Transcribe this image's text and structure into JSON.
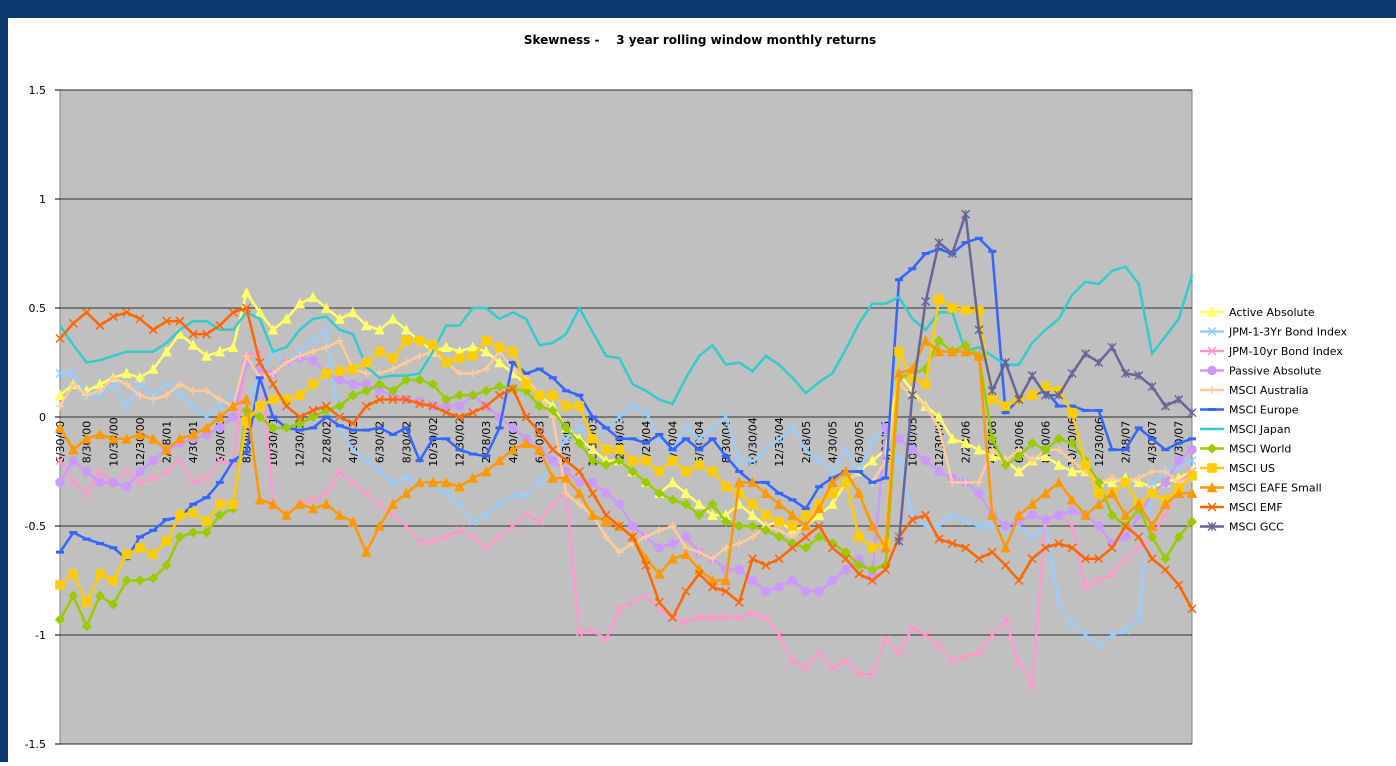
{
  "chart_data": {
    "type": "line",
    "title": "Skewness -    3 year rolling window monthly returns",
    "categories": [
      "6/30/00",
      null,
      "8/30/00",
      null,
      "10/30/00",
      null,
      "12/30/00",
      null,
      "2/28/01",
      null,
      "4/30/01",
      null,
      "6/30/01",
      null,
      "8/30/01",
      null,
      "10/30/01",
      null,
      "12/30/01",
      null,
      "2/28/02",
      null,
      "4/30/02",
      null,
      "6/30/02",
      null,
      "8/30/02",
      null,
      "10/30/02",
      null,
      "12/30/02",
      null,
      "2/28/03",
      null,
      "4/30/03",
      null,
      "6/30/03",
      null,
      "8/30/03",
      null,
      "10/30/03",
      null,
      "12/30/03",
      null,
      "2/29/04",
      null,
      "4/30/04",
      null,
      "6/30/04",
      null,
      "8/30/04",
      null,
      "10/30/04",
      null,
      "12/30/04",
      null,
      "2/28/05",
      null,
      "4/30/05",
      null,
      "6/30/05",
      null,
      "8/30/05",
      null,
      "10/30/05",
      null,
      "12/30/05",
      null,
      "2/28/06",
      null,
      "4/30/06",
      null,
      "6/30/06",
      null,
      "8/30/06",
      null,
      "10/30/06",
      null,
      "12/30/06",
      null,
      "2/28/07",
      null,
      "4/30/07",
      null,
      "6/30/07",
      null
    ],
    "ylim": [
      -1.5,
      1.5
    ],
    "yticks": [
      -1.5,
      -1,
      -0.5,
      0,
      0.5,
      1,
      1.5
    ],
    "grid": true,
    "legend": "right",
    "series": [
      {
        "name": "Active Absolute",
        "color": "#ffff66",
        "marker": "triangle",
        "values": [
          0.1,
          0.15,
          0.12,
          0.15,
          0.18,
          0.2,
          0.18,
          0.22,
          0.3,
          0.38,
          0.33,
          0.28,
          0.3,
          0.32,
          0.57,
          0.48,
          0.4,
          0.45,
          0.52,
          0.55,
          0.5,
          0.45,
          0.48,
          0.42,
          0.4,
          0.45,
          0.4,
          0.35,
          0.3,
          0.32,
          0.3,
          0.32,
          0.3,
          0.25,
          0.2,
          0.15,
          0.1,
          0.05,
          -0.05,
          -0.1,
          -0.15,
          -0.2,
          -0.2,
          -0.25,
          -0.3,
          -0.35,
          -0.3,
          -0.35,
          -0.4,
          -0.45,
          -0.45,
          -0.4,
          -0.45,
          -0.5,
          -0.48,
          -0.52,
          -0.5,
          -0.45,
          -0.4,
          -0.3,
          -0.25,
          -0.2,
          -0.15,
          0.2,
          0.12,
          0.05,
          0.0,
          -0.1,
          -0.12,
          -0.15,
          -0.18,
          -0.2,
          -0.25,
          -0.2,
          -0.18,
          -0.22,
          -0.25,
          -0.25,
          -0.3,
          -0.3,
          -0.28,
          -0.3,
          -0.32,
          -0.3,
          -0.28,
          -0.25
        ]
      },
      {
        "name": "JPM-1-3Yr Bond Index",
        "color": "#99ccff",
        "marker": "x",
        "values": [
          0.2,
          0.2,
          0.1,
          0.1,
          0.15,
          0.05,
          0.15,
          0.1,
          0.15,
          0.1,
          0.05,
          0.0,
          0.05,
          0.1,
          0.05,
          0.2,
          0.3,
          0.25,
          0.3,
          0.35,
          0.4,
          -0.05,
          -0.15,
          -0.2,
          -0.25,
          -0.3,
          -0.28,
          -0.3,
          -0.32,
          -0.35,
          -0.4,
          -0.48,
          -0.45,
          -0.4,
          -0.36,
          -0.36,
          -0.3,
          -0.2,
          -0.1,
          -0.05,
          -0.1,
          -0.05,
          0.0,
          0.05,
          0.02,
          -0.1,
          -0.15,
          -0.05,
          -0.1,
          -0.05,
          0.0,
          -0.2,
          -0.2,
          -0.15,
          -0.1,
          -0.05,
          -0.15,
          -0.2,
          -0.25,
          -0.15,
          -0.25,
          -0.1,
          -0.05,
          -0.2,
          -0.45,
          -0.5,
          -0.5,
          -0.45,
          -0.48,
          -0.5,
          -0.5,
          -0.52,
          -0.5,
          -0.55,
          -0.5,
          -0.85,
          -0.95,
          -1.0,
          -1.05,
          -1.0,
          -0.98,
          -0.93,
          -0.3,
          -0.25,
          -0.22,
          -0.2
        ]
      },
      {
        "name": "JPM-10yr Bond Index",
        "color": "#ff99cc",
        "marker": "x",
        "values": [
          -0.2,
          -0.3,
          -0.35,
          -0.25,
          -0.3,
          -0.25,
          -0.3,
          -0.28,
          -0.25,
          -0.2,
          -0.3,
          -0.28,
          -0.2,
          -0.22,
          0.28,
          0.3,
          -0.4,
          -0.45,
          -0.4,
          -0.38,
          -0.35,
          -0.25,
          -0.3,
          -0.35,
          -0.4,
          -0.45,
          -0.5,
          -0.57,
          -0.57,
          -0.55,
          -0.52,
          -0.55,
          -0.6,
          -0.55,
          -0.5,
          -0.45,
          -0.48,
          -0.4,
          -0.35,
          -0.99,
          -0.98,
          -1.02,
          -0.88,
          -0.85,
          -0.82,
          -0.88,
          -0.92,
          -0.94,
          -0.92,
          -0.92,
          -0.92,
          -0.92,
          -0.9,
          -0.92,
          -1.0,
          -1.12,
          -1.15,
          -1.08,
          -1.15,
          -1.12,
          -1.18,
          -1.18,
          -1.02,
          -1.08,
          -0.97,
          -1.0,
          -1.05,
          -1.12,
          -1.1,
          -1.08,
          -1.0,
          -0.93,
          -1.13,
          -1.23,
          -0.48,
          -0.45,
          -0.5,
          -0.78,
          -0.75,
          -0.72,
          -0.65,
          -0.6,
          -0.55,
          -0.45,
          -0.3,
          -0.25
        ]
      },
      {
        "name": "Passive Absolute",
        "color": "#cc99ff",
        "marker": "circle",
        "values": [
          -0.3,
          -0.2,
          -0.25,
          -0.3,
          -0.3,
          -0.32,
          -0.25,
          -0.2,
          -0.15,
          -0.12,
          -0.1,
          -0.08,
          -0.05,
          0.0,
          0.25,
          0.22,
          0.2,
          0.25,
          0.27,
          0.26,
          0.2,
          0.17,
          0.15,
          0.15,
          0.12,
          0.1,
          0.08,
          0.07,
          0.05,
          0.05,
          0.05,
          0.1,
          0.05,
          0.0,
          -0.05,
          -0.1,
          -0.15,
          -0.2,
          -0.25,
          -0.3,
          -0.3,
          -0.35,
          -0.4,
          -0.5,
          -0.55,
          -0.6,
          -0.58,
          -0.55,
          -0.62,
          -0.65,
          -0.7,
          -0.7,
          -0.75,
          -0.8,
          -0.78,
          -0.75,
          -0.8,
          -0.8,
          -0.75,
          -0.7,
          -0.65,
          -0.72,
          -0.05,
          -0.1,
          -0.15,
          -0.2,
          -0.25,
          -0.28,
          -0.3,
          -0.35,
          -0.45,
          -0.5,
          -0.48,
          -0.45,
          -0.47,
          -0.45,
          -0.43,
          -0.45,
          -0.5,
          -0.58,
          -0.55,
          -0.45,
          -0.35,
          -0.3,
          -0.2,
          -0.15
        ]
      },
      {
        "name": "MSCI Australia",
        "color": "#ffcc99",
        "marker": "plus",
        "values": [
          0.05,
          0.15,
          0.1,
          0.12,
          0.18,
          0.15,
          0.1,
          0.08,
          0.1,
          0.15,
          0.12,
          0.12,
          0.08,
          0.05,
          0.28,
          0.18,
          0.2,
          0.25,
          0.28,
          0.3,
          0.32,
          0.35,
          0.22,
          0.2,
          0.2,
          0.22,
          0.25,
          0.28,
          0.3,
          0.25,
          0.2,
          0.2,
          0.22,
          0.3,
          0.22,
          0.18,
          0.1,
          0.0,
          -0.35,
          -0.4,
          -0.45,
          -0.55,
          -0.62,
          -0.58,
          -0.55,
          -0.52,
          -0.5,
          -0.6,
          -0.62,
          -0.65,
          -0.6,
          -0.58,
          -0.55,
          -0.5,
          -0.52,
          -0.55,
          -0.5,
          -0.4,
          -0.35,
          -0.3,
          -0.25,
          -0.3,
          -0.2,
          0.15,
          0.1,
          0.05,
          -0.05,
          -0.3,
          -0.3,
          -0.3,
          -0.15,
          -0.2,
          -0.15,
          -0.2,
          -0.15,
          -0.15,
          -0.2,
          -0.25,
          -0.3,
          -0.28,
          -0.3,
          -0.28,
          -0.25,
          -0.25,
          -0.3,
          -0.28
        ]
      },
      {
        "name": "MSCI Europe",
        "color": "#3366ff",
        "marker": "dash",
        "values": [
          -0.62,
          -0.53,
          -0.56,
          -0.58,
          -0.6,
          -0.65,
          -0.55,
          -0.52,
          -0.47,
          -0.46,
          -0.4,
          -0.37,
          -0.3,
          -0.2,
          -0.16,
          0.18,
          0.0,
          -0.05,
          -0.06,
          -0.05,
          0.0,
          -0.04,
          -0.06,
          -0.06,
          -0.05,
          -0.08,
          -0.05,
          -0.2,
          -0.1,
          -0.1,
          -0.15,
          -0.17,
          -0.18,
          -0.05,
          0.25,
          0.2,
          0.22,
          0.18,
          0.12,
          0.1,
          0.0,
          -0.05,
          -0.1,
          -0.1,
          -0.12,
          -0.08,
          -0.15,
          -0.1,
          -0.15,
          -0.1,
          -0.18,
          -0.25,
          -0.3,
          -0.3,
          -0.35,
          -0.38,
          -0.42,
          -0.32,
          -0.28,
          -0.25,
          -0.25,
          -0.3,
          -0.28,
          0.63,
          0.68,
          0.75,
          0.77,
          0.75,
          0.8,
          0.82,
          0.76,
          0.02,
          0.08,
          0.1,
          0.12,
          0.05,
          0.05,
          0.03,
          0.03,
          -0.15,
          -0.15,
          -0.05,
          -0.1,
          -0.15,
          -0.12,
          -0.1
        ]
      },
      {
        "name": "MSCI Japan",
        "color": "#33cccc",
        "marker": "none",
        "values": [
          0.42,
          0.33,
          0.25,
          0.26,
          0.28,
          0.3,
          0.3,
          0.3,
          0.34,
          0.4,
          0.44,
          0.44,
          0.4,
          0.4,
          0.48,
          0.45,
          0.3,
          0.32,
          0.4,
          0.45,
          0.46,
          0.4,
          0.38,
          0.23,
          0.18,
          0.19,
          0.19,
          0.2,
          0.3,
          0.42,
          0.42,
          0.5,
          0.5,
          0.45,
          0.48,
          0.45,
          0.33,
          0.34,
          0.38,
          0.5,
          0.39,
          0.28,
          0.27,
          0.15,
          0.12,
          0.08,
          0.06,
          0.18,
          0.28,
          0.33,
          0.24,
          0.25,
          0.21,
          0.28,
          0.24,
          0.18,
          0.11,
          0.16,
          0.2,
          0.31,
          0.43,
          0.52,
          0.52,
          0.55,
          0.45,
          0.4,
          0.48,
          0.48,
          0.3,
          0.32,
          0.28,
          0.24,
          0.24,
          0.34,
          0.4,
          0.45,
          0.56,
          0.62,
          0.61,
          0.67,
          0.69,
          0.61,
          0.29,
          0.37,
          0.45,
          0.65
        ]
      },
      {
        "name": "MSCI World",
        "color": "#99cc00",
        "marker": "diamond",
        "values": [
          -0.93,
          -0.82,
          -0.96,
          -0.82,
          -0.86,
          -0.75,
          -0.75,
          -0.74,
          -0.68,
          -0.55,
          -0.53,
          -0.53,
          -0.45,
          -0.42,
          0.03,
          0.0,
          -0.05,
          -0.05,
          -0.03,
          0.0,
          0.03,
          0.05,
          0.1,
          0.12,
          0.15,
          0.12,
          0.17,
          0.17,
          0.15,
          0.08,
          0.1,
          0.1,
          0.12,
          0.14,
          0.13,
          0.12,
          0.05,
          0.03,
          -0.05,
          -0.12,
          -0.2,
          -0.22,
          -0.2,
          -0.25,
          -0.3,
          -0.35,
          -0.38,
          -0.4,
          -0.45,
          -0.4,
          -0.48,
          -0.5,
          -0.5,
          -0.52,
          -0.55,
          -0.58,
          -0.6,
          -0.55,
          -0.58,
          -0.62,
          -0.68,
          -0.7,
          -0.68,
          0.18,
          0.2,
          0.22,
          0.35,
          0.3,
          0.33,
          0.28,
          -0.1,
          -0.22,
          -0.18,
          -0.12,
          -0.15,
          -0.1,
          -0.12,
          -0.2,
          -0.3,
          -0.45,
          -0.5,
          -0.42,
          -0.55,
          -0.65,
          -0.55,
          -0.48
        ]
      },
      {
        "name": "MSCI US",
        "color": "#ffcc00",
        "marker": "square",
        "values": [
          -0.77,
          -0.72,
          -0.85,
          -0.72,
          -0.75,
          -0.63,
          -0.6,
          -0.63,
          -0.57,
          -0.45,
          -0.44,
          -0.48,
          -0.4,
          -0.4,
          -0.02,
          0.05,
          0.08,
          0.08,
          0.1,
          0.15,
          0.2,
          0.21,
          0.22,
          0.25,
          0.3,
          0.27,
          0.35,
          0.35,
          0.33,
          0.25,
          0.27,
          0.28,
          0.35,
          0.32,
          0.3,
          0.15,
          0.1,
          0.1,
          0.05,
          0.05,
          -0.1,
          -0.15,
          -0.15,
          -0.2,
          -0.2,
          -0.25,
          -0.2,
          -0.25,
          -0.22,
          -0.25,
          -0.32,
          -0.35,
          -0.4,
          -0.45,
          -0.48,
          -0.5,
          -0.45,
          -0.4,
          -0.35,
          -0.3,
          -0.55,
          -0.6,
          -0.58,
          0.3,
          0.18,
          0.15,
          0.54,
          0.5,
          0.49,
          0.49,
          0.08,
          0.05,
          0.08,
          0.1,
          0.14,
          0.12,
          0.02,
          -0.22,
          -0.35,
          -0.35,
          -0.3,
          -0.4,
          -0.35,
          -0.38,
          -0.33,
          -0.27
        ]
      },
      {
        "name": "MSCI EAFE Small",
        "color": "#ff9900",
        "marker": "triangle",
        "values": [
          -0.05,
          -0.15,
          -0.1,
          -0.08,
          -0.1,
          -0.1,
          -0.08,
          -0.1,
          -0.15,
          -0.1,
          -0.08,
          -0.05,
          0.0,
          0.05,
          0.08,
          -0.38,
          -0.4,
          -0.45,
          -0.4,
          -0.42,
          -0.4,
          -0.45,
          -0.48,
          -0.62,
          -0.5,
          -0.4,
          -0.35,
          -0.3,
          -0.3,
          -0.3,
          -0.32,
          -0.28,
          -0.25,
          -0.2,
          -0.15,
          -0.12,
          -0.15,
          -0.28,
          -0.28,
          -0.35,
          -0.45,
          -0.48,
          -0.5,
          -0.55,
          -0.65,
          -0.72,
          -0.65,
          -0.63,
          -0.7,
          -0.75,
          -0.75,
          -0.3,
          -0.3,
          -0.35,
          -0.4,
          -0.45,
          -0.5,
          -0.42,
          -0.3,
          -0.25,
          -0.35,
          -0.5,
          -0.6,
          0.2,
          0.22,
          0.35,
          0.3,
          0.3,
          0.3,
          0.28,
          -0.45,
          -0.6,
          -0.45,
          -0.4,
          -0.35,
          -0.3,
          -0.38,
          -0.45,
          -0.4,
          -0.35,
          -0.45,
          -0.4,
          -0.5,
          -0.4,
          -0.35,
          -0.35
        ]
      },
      {
        "name": "MSCI EMF",
        "color": "#ff6600",
        "marker": "x",
        "values": [
          0.36,
          0.43,
          0.48,
          0.42,
          0.46,
          0.48,
          0.45,
          0.4,
          0.44,
          0.44,
          0.38,
          0.38,
          0.42,
          0.48,
          0.5,
          0.25,
          0.15,
          0.05,
          0.0,
          0.03,
          0.05,
          0.0,
          -0.03,
          0.05,
          0.08,
          0.08,
          0.08,
          0.06,
          0.05,
          0.02,
          0.0,
          0.02,
          0.05,
          0.1,
          0.13,
          0.0,
          -0.07,
          -0.15,
          -0.2,
          -0.25,
          -0.35,
          -0.45,
          -0.5,
          -0.55,
          -0.68,
          -0.85,
          -0.92,
          -0.8,
          -0.72,
          -0.78,
          -0.8,
          -0.85,
          -0.65,
          -0.68,
          -0.65,
          -0.6,
          -0.55,
          -0.5,
          -0.6,
          -0.65,
          -0.72,
          -0.75,
          -0.7,
          -0.55,
          -0.47,
          -0.45,
          -0.56,
          -0.58,
          -0.6,
          -0.65,
          -0.62,
          -0.68,
          -0.75,
          -0.65,
          -0.6,
          -0.58,
          -0.6,
          -0.65,
          -0.65,
          -0.6,
          -0.5,
          -0.55,
          -0.65,
          -0.7,
          -0.77,
          -0.88
        ]
      },
      {
        "name": "MSCI GCC",
        "color": "#666699",
        "marker": "star",
        "values": [
          null,
          null,
          null,
          null,
          null,
          null,
          null,
          null,
          null,
          null,
          null,
          null,
          null,
          null,
          null,
          null,
          null,
          null,
          null,
          null,
          null,
          null,
          null,
          null,
          null,
          null,
          null,
          null,
          null,
          null,
          null,
          null,
          null,
          null,
          null,
          null,
          null,
          null,
          null,
          null,
          null,
          null,
          null,
          null,
          null,
          null,
          null,
          null,
          null,
          null,
          null,
          null,
          null,
          null,
          null,
          null,
          null,
          null,
          null,
          null,
          null,
          null,
          null,
          -0.57,
          0.1,
          0.53,
          0.8,
          0.75,
          0.93,
          0.4,
          0.12,
          0.25,
          0.08,
          0.19,
          0.1,
          0.1,
          0.2,
          0.29,
          0.25,
          0.32,
          0.2,
          0.19,
          0.14,
          0.05,
          0.08,
          0.02
        ]
      }
    ]
  }
}
